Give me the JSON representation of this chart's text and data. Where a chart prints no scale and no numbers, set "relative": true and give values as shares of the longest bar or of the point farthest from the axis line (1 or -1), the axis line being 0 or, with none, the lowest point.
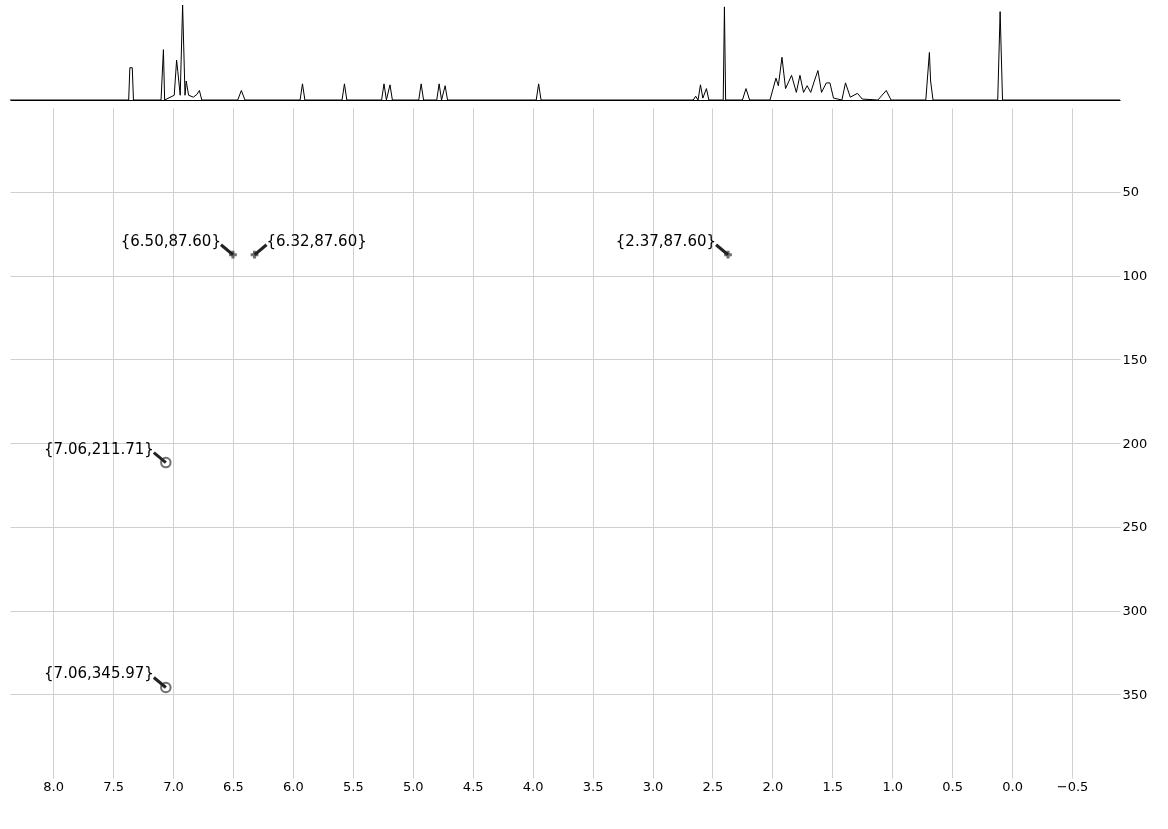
{
  "chart_data": [
    {
      "type": "line",
      "relative": true,
      "tick_labels": false,
      "xlim": [
        8.36,
        -0.9
      ],
      "series": [
        {
          "color": "#000000",
          "x": [
            8.36,
            7.37,
            7.36,
            7.34,
            7.33,
            7.1,
            7.08,
            7.07,
            6.99,
            6.97,
            6.96,
            6.94,
            6.92,
            6.9,
            6.89,
            6.87,
            6.83,
            6.8,
            6.78,
            6.76,
            6.46,
            6.43,
            6.4,
            5.94,
            5.92,
            5.9,
            5.59,
            5.57,
            5.55,
            5.26,
            5.24,
            5.22,
            5.19,
            5.17,
            4.95,
            4.93,
            4.91,
            4.8,
            4.78,
            4.76,
            4.73,
            4.71,
            3.97,
            3.95,
            3.93,
            2.66,
            2.64,
            2.62,
            2.6,
            2.58,
            2.55,
            2.53,
            2.41,
            2.4,
            2.39,
            2.25,
            2.22,
            2.19,
            2.02,
            1.97,
            1.95,
            1.92,
            1.89,
            1.84,
            1.8,
            1.77,
            1.74,
            1.71,
            1.68,
            1.65,
            1.62,
            1.59,
            1.55,
            1.52,
            1.49,
            1.42,
            1.39,
            1.35,
            1.29,
            1.25,
            1.12,
            1.05,
            1.01,
            0.72,
            0.69,
            0.68,
            0.66,
            0.12,
            0.1,
            0.08,
            -0.9
          ],
          "values": [
            0,
            0,
            0.34,
            0.34,
            0,
            0,
            0.53,
            0,
            0.05,
            0.42,
            0.3,
            0.05,
            1.0,
            0.05,
            0.2,
            0.05,
            0.03,
            0.06,
            0.1,
            0,
            0,
            0.1,
            0,
            0,
            0.17,
            0,
            0,
            0.17,
            0,
            0,
            0.17,
            0,
            0.16,
            0,
            0,
            0.17,
            0,
            0,
            0.17,
            0,
            0.15,
            0,
            0,
            0.17,
            0,
            0,
            0.04,
            0,
            0.16,
            0.02,
            0.12,
            0,
            0,
            0.98,
            0,
            0,
            0.12,
            0,
            0,
            0.23,
            0.15,
            0.45,
            0.12,
            0.26,
            0.08,
            0.26,
            0.08,
            0.15,
            0.08,
            0.2,
            0.31,
            0.08,
            0.18,
            0.18,
            0.02,
            0,
            0.18,
            0.03,
            0.07,
            0.01,
            0,
            0.1,
            0,
            0,
            0.5,
            0.2,
            0,
            0,
            0.93,
            0,
            0
          ]
        }
      ]
    },
    {
      "type": "scatter",
      "xlim": [
        8.36,
        -0.9
      ],
      "xticks": [
        {
          "value": 8,
          "label": "8.0"
        },
        7.5,
        {
          "value": 7,
          "label": "7.0"
        },
        6.5,
        {
          "value": 6,
          "label": "6.0"
        },
        5.5,
        {
          "value": 5,
          "label": "5.0"
        },
        4.5,
        {
          "value": 4,
          "label": "4.0"
        },
        3.5,
        {
          "value": 3,
          "label": "3.0"
        },
        2.5,
        {
          "value": 2,
          "label": "2.0"
        },
        1.5,
        {
          "value": 1,
          "label": "1.0"
        },
        0.5,
        {
          "value": 0,
          "label": "0.0"
        },
        -0.5
      ],
      "ylim": [
        400,
        0
      ],
      "yticks": [
        50,
        100,
        150,
        200,
        250,
        300,
        350
      ],
      "grid": true,
      "series": [
        {
          "color": "#333333",
          "marker": "cross",
          "x": [
            6.5,
            6.32,
            2.37
          ],
          "values": [
            87.6,
            87.6,
            87.6
          ]
        },
        {
          "color": "#333333",
          "marker": "circle",
          "x": [
            7.06,
            7.06
          ],
          "values": [
            211.71,
            345.97
          ]
        }
      ],
      "annotations": [
        {
          "text": "{6.50,87.60}",
          "x": 6.5,
          "y": 87.6
        },
        {
          "text": "{6.32,87.60}",
          "x": 6.32,
          "y": 87.6
        },
        {
          "text": "{2.37,87.60}",
          "x": 2.37,
          "y": 87.6
        },
        {
          "text": "{7.06,211.71}",
          "x": 7.06,
          "y": 211.71
        },
        {
          "text": "{7.06,345.97}",
          "x": 7.06,
          "y": 345.97
        }
      ]
    }
  ]
}
